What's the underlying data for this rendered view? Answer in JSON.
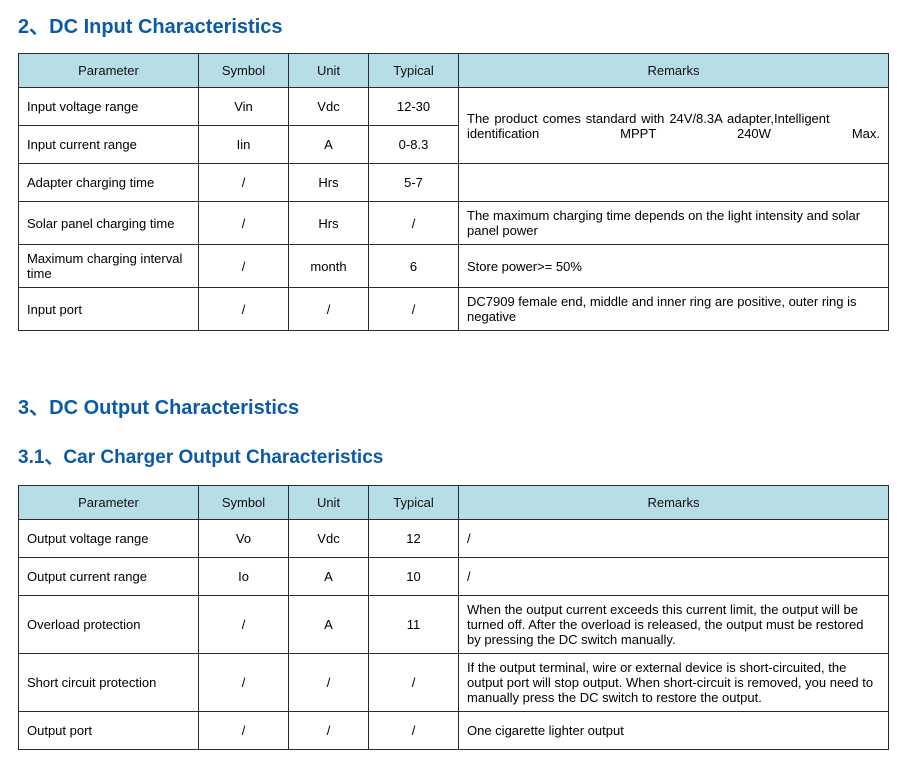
{
  "colors": {
    "heading": "#0b5aa6",
    "header_bg": "#b7dde6",
    "border": "#2a2a2a",
    "text": "#000000",
    "bg": "#ffffff"
  },
  "headings": {
    "sec2": "2、DC Input Characteristics",
    "sec3": "3、DC Output Characteristics",
    "sec3_1": "3.1、Car Charger Output Characteristics"
  },
  "tableHeaders": {
    "parameter": "Parameter",
    "symbol": "Symbol",
    "unit": "Unit",
    "typical": "Typical",
    "remarks": "Remarks"
  },
  "dcInput": {
    "r0": {
      "param": "Input voltage range",
      "symbol": "Vin",
      "unit": "Vdc",
      "typical": "12-30"
    },
    "r1": {
      "param": "Input current range",
      "symbol": "Iin",
      "unit": "A",
      "typical": "0-8.3"
    },
    "mergedRemarks01": "The product comes standard with 24V/8.3A adapter,Intelligent identification MPPT 240W Max.",
    "r2": {
      "param": "Adapter charging time",
      "symbol": "/",
      "unit": "Hrs",
      "typical": "5-7",
      "remarks": ""
    },
    "r3": {
      "param": "Solar panel charging time",
      "symbol": "/",
      "unit": "Hrs",
      "typical": "/",
      "remarks": "The maximum charging time depends on the light intensity and solar panel power"
    },
    "r4": {
      "param": "Maximum charging interval time",
      "symbol": "/",
      "unit": "month",
      "typical": "6",
      "remarks": "Store power>= 50%"
    },
    "r5": {
      "param": "Input port",
      "symbol": "/",
      "unit": "/",
      "typical": "/",
      "remarks": "DC7909 female end, middle and inner ring are positive, outer ring is negative"
    }
  },
  "carCharger": {
    "r0": {
      "param": "Output voltage range",
      "symbol": "Vo",
      "unit": "Vdc",
      "typical": "12",
      "remarks": "/"
    },
    "r1": {
      "param": "Output current range",
      "symbol": "Io",
      "unit": "A",
      "typical": "10",
      "remarks": "/"
    },
    "r2": {
      "param": "Overload protection",
      "symbol": "/",
      "unit": "A",
      "typical": "11",
      "remarks": "When the output current exceeds this current limit, the output will be turned off. After the overload is released, the output must be restored by pressing the DC switch manually."
    },
    "r3": {
      "param": "Short circuit protection",
      "symbol": "/",
      "unit": "/",
      "typical": "/",
      "remarks": "If the output terminal, wire or external device is short-circuited, the output port will stop output. When short-circuit is removed, you need to manually press the DC switch to restore the output."
    },
    "r4": {
      "param": "Output port",
      "symbol": "/",
      "unit": "/",
      "typical": "/",
      "remarks": "One cigarette lighter output"
    }
  }
}
